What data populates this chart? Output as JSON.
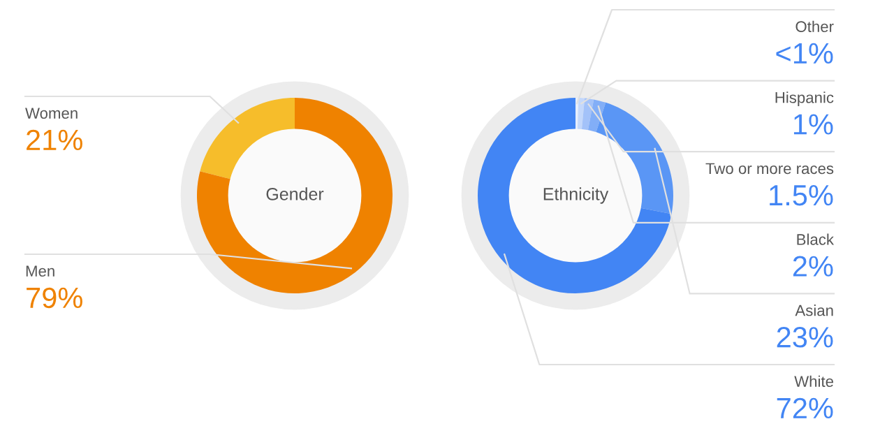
{
  "chart_data": [
    {
      "type": "donut",
      "title": "Gender",
      "categories": [
        "Women",
        "Men"
      ],
      "values": [
        21,
        79
      ],
      "colors": [
        "#f6bd2b",
        "#ef8200"
      ],
      "value_labels": [
        "21%",
        "79%"
      ]
    },
    {
      "type": "donut",
      "title": "Ethnicity",
      "categories": [
        "Other",
        "Hispanic",
        "Two or more races",
        "Black",
        "Asian",
        "White"
      ],
      "values": [
        0.5,
        1,
        1.5,
        2,
        23,
        72
      ],
      "colors": [
        "#e6eefc",
        "#c4d8fb",
        "#a3c2f9",
        "#82aef7",
        "#5a96f5",
        "#4285f4"
      ],
      "value_labels": [
        "<1%",
        "1%",
        "1.5%",
        "2%",
        "23%",
        "72%"
      ]
    }
  ]
}
